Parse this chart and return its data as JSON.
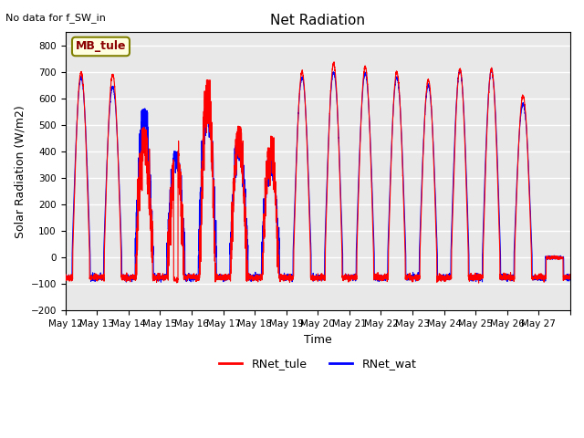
{
  "title": "Net Radiation",
  "subtitle": "No data for f_SW_in",
  "ylabel": "Solar Radiation (W/m2)",
  "xlabel": "Time",
  "ylim": [
    -200,
    850
  ],
  "yticks": [
    -200,
    -100,
    0,
    100,
    200,
    300,
    400,
    500,
    600,
    700,
    800
  ],
  "station_label": "MB_tule",
  "background_color": "#e8e8e8",
  "line_color_tule": "red",
  "line_color_wat": "blue",
  "n_days": 16,
  "pts_per_day": 288,
  "x_tick_labels": [
    "May 12",
    "May 13",
    "May 14",
    "May 15",
    "May 16",
    "May 17",
    "May 18",
    "May 19",
    "May 20",
    "May 21",
    "May 22",
    "May 23",
    "May 24",
    "May 25",
    "May 26",
    "May 27"
  ],
  "figsize": [
    6.4,
    4.8
  ],
  "dpi": 100
}
